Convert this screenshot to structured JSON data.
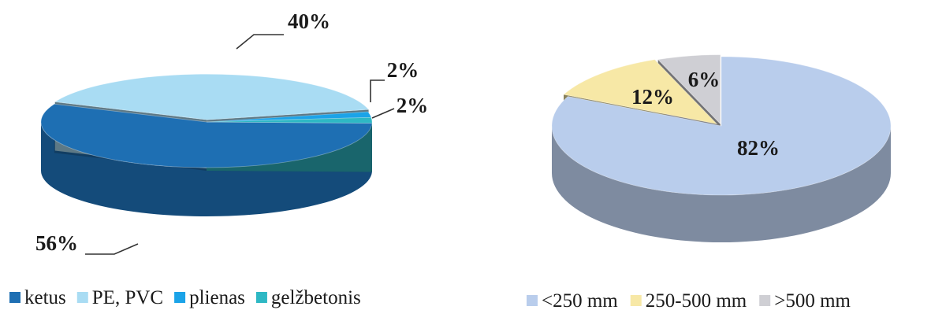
{
  "chart_data": [
    {
      "type": "pie",
      "title": "",
      "slices": [
        {
          "label": "ketus",
          "value": 56,
          "value_label": "56%",
          "color": "#1e6fb3"
        },
        {
          "label": "PE, PVC",
          "value": 40,
          "value_label": "40%",
          "color": "#a9dcf3"
        },
        {
          "label": "plienas",
          "value": 2,
          "value_label": "2%",
          "color": "#1ba3e8"
        },
        {
          "label": "gelžbetonis",
          "value": 2,
          "value_label": "2%",
          "color": "#2eb8c4"
        }
      ],
      "legend_position": "bottom",
      "style": "3d-exploded"
    },
    {
      "type": "pie",
      "title": "",
      "slices": [
        {
          "label": "<250 mm",
          "value": 82,
          "value_label": "82%",
          "color": "#b9cdec"
        },
        {
          "label": "250-500 mm",
          "value": 12,
          "value_label": "12%",
          "color": "#f7e8a6"
        },
        {
          "label": ">500 mm",
          "value": 6,
          "value_label": "6%",
          "color": "#cfcfd4"
        }
      ],
      "legend_position": "bottom",
      "style": "3d-exploded"
    }
  ]
}
